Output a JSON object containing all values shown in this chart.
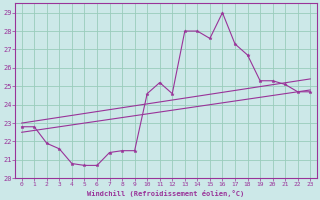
{
  "bg_color": "#cce8e8",
  "grid_color": "#99ccbb",
  "line_color": "#993399",
  "xlabel": "Windchill (Refroidissement éolien,°C)",
  "ylim": [
    20,
    29.5
  ],
  "xlim": [
    -0.5,
    23.5
  ],
  "yticks": [
    20,
    21,
    22,
    23,
    24,
    25,
    26,
    27,
    28,
    29
  ],
  "xticks": [
    0,
    1,
    2,
    3,
    4,
    5,
    6,
    7,
    8,
    9,
    10,
    11,
    12,
    13,
    14,
    15,
    16,
    17,
    18,
    19,
    20,
    21,
    22,
    23
  ],
  "series1_x": [
    0,
    1,
    2,
    3,
    4,
    5,
    6,
    7,
    8,
    9,
    10,
    11,
    12,
    13,
    14,
    15,
    16,
    17,
    18,
    19,
    20,
    21,
    22,
    23
  ],
  "series1_y": [
    22.8,
    22.8,
    21.9,
    21.6,
    20.8,
    20.7,
    20.7,
    21.4,
    21.5,
    21.5,
    24.6,
    25.2,
    24.6,
    28.0,
    28.0,
    27.6,
    29.0,
    27.3,
    26.7,
    25.3,
    25.3,
    25.1,
    24.7,
    24.7
  ],
  "series2_x": [
    0,
    23
  ],
  "series2_y": [
    22.5,
    24.8
  ],
  "series3_x": [
    0,
    23
  ],
  "series3_y": [
    23.0,
    25.4
  ]
}
